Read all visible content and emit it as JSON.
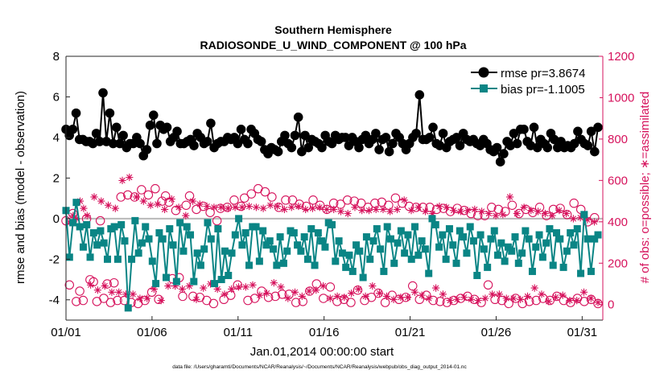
{
  "chart_data": {
    "type": "line",
    "title_line1": "Southern Hemisphere",
    "title_line2": "RADIOSONDE_U_WIND_COMPONENT @ 100 hPa",
    "xlabel": "Jan.01,2014 00:00:00 start",
    "ylabel_left": "rmse and bias (model - observation)",
    "ylabel_right": "# of obs: o=possible; ∗=assimilated",
    "footnote": "data file: /Users/gharamti/Documents/NCAR/Reanalysis/~/Documents/NCAR/Reanalysis/webpub/obs_diag_output_2014-01.nc",
    "xlim": [
      1,
      32.2
    ],
    "ylim_left": [
      -5,
      8
    ],
    "ylim_right": [
      -75,
      1200
    ],
    "left_ticks": [
      "8",
      "6",
      "4",
      "2",
      "0",
      "-2",
      "-4"
    ],
    "right_ticks": [
      "1200",
      "1000",
      "800",
      "600",
      "400",
      "200",
      "0"
    ],
    "x_tick_labels": [
      "01/01",
      "01/06",
      "01/11",
      "01/16",
      "01/21",
      "01/26",
      "01/31"
    ],
    "x_tick_values": [
      1,
      6,
      11,
      16,
      21,
      26,
      31
    ],
    "zero_line": 0,
    "legend": {
      "position": "top-right",
      "rmse_label": "rmse pr=3.8674",
      "bias_label": "bias pr=-1.1005"
    },
    "colors": {
      "rmse": "#000000",
      "bias": "#0a8585",
      "obs": "#d6125c",
      "zero_line": "#b8b8b8",
      "axis": "#262626"
    },
    "series": [
      {
        "name": "rmse",
        "values": [
          4.4,
          4.1,
          4.4,
          5.2,
          3.9,
          3.9,
          3.8,
          3.8,
          3.7,
          4.2,
          3.8,
          6.2,
          3.8,
          5.2,
          3.7,
          4.5,
          3.7,
          4.1,
          3.5,
          3.7,
          3.7,
          4.0,
          3.7,
          3.1,
          3.4,
          4.6,
          5.1,
          3.7,
          4.6,
          4.4,
          4.5,
          3.8,
          4.0,
          4.3,
          3.7,
          3.7,
          3.8,
          3.9,
          3.6,
          4.2,
          4.0,
          3.7,
          3.8,
          4.7,
          3.5,
          3.7,
          3.8,
          3.8,
          4.0,
          3.9,
          4.0,
          3.7,
          4.4,
          3.9,
          3.7,
          4.4,
          4.2,
          3.9,
          3.8,
          3.4,
          3.2,
          3.5,
          3.4,
          3.3,
          3.8,
          4.1,
          3.7,
          3.5,
          4.1,
          5.0,
          3.3,
          4.1,
          3.5,
          3.9,
          3.8,
          3.7,
          3.5,
          4.1,
          3.8,
          3.7,
          4.1,
          3.9,
          4.0,
          4.0,
          3.6,
          4.0,
          3.8,
          3.5,
          3.9,
          4.1,
          3.7,
          3.9,
          4.2,
          3.4,
          3.9,
          4.0,
          3.3,
          3.7,
          4.2,
          4.0,
          3.7,
          3.4,
          3.7,
          4.0,
          4.2,
          6.1,
          3.9,
          3.9,
          4.0,
          4.5,
          3.7,
          3.6,
          4.2,
          3.5,
          3.8,
          3.9,
          4.0,
          3.6,
          4.2,
          3.9,
          3.8,
          3.9,
          3.7,
          3.6,
          3.9,
          3.7,
          3.4,
          3.3,
          3.5,
          2.8,
          3.2,
          3.8,
          3.6,
          4.2,
          3.7,
          4.4,
          4.4,
          3.8,
          3.6,
          4.5,
          3.5,
          3.9,
          3.7,
          3.5,
          4.2,
          3.9,
          3.5,
          3.8,
          3.5,
          3.6,
          3.5,
          3.7,
          4.3,
          3.9,
          3.7,
          3.6,
          4.3,
          3.3,
          4.5
        ]
      },
      {
        "name": "bias",
        "values": [
          0.4,
          -1.9,
          -0.2,
          0.8,
          -0.4,
          -1.4,
          -0.3,
          -1.9,
          -0.7,
          -1.3,
          -0.6,
          -1.2,
          -2.0,
          -0.5,
          -0.4,
          -2.0,
          -0.3,
          -1.1,
          -4.4,
          -2.0,
          -0.1,
          -1.7,
          -1.2,
          -0.4,
          -1.0,
          -2.1,
          -3.2,
          -0.7,
          -1.0,
          -2.9,
          -0.5,
          -1.3,
          -3.1,
          -0.2,
          -1.6,
          -0.4,
          -0.8,
          -3.1,
          -1.7,
          -2.3,
          -1.5,
          -0.2,
          -1.0,
          -3.2,
          -0.5,
          -3.0,
          -1.6,
          -2.8,
          -1.7,
          -0.8,
          0.0,
          -1.3,
          -0.7,
          -2.3,
          -0.4,
          -0.4,
          -2.1,
          -0.6,
          -1.3,
          -1.1,
          -1.5,
          -2.3,
          -0.9,
          -2.2,
          -1.6,
          -0.6,
          -0.7,
          -1.3,
          -1.6,
          -0.9,
          -2.0,
          -0.5,
          -2.3,
          -0.7,
          -1.1,
          -1.4,
          -0.2,
          -0.3,
          -2.1,
          -1.1,
          -1.7,
          -2.4,
          -1.8,
          -2.6,
          -1.3,
          -1.6,
          -2.9,
          -0.9,
          -2.0,
          -1.1,
          -0.5,
          -1.5,
          -2.6,
          -0.4,
          -1.0,
          -2.2,
          -1.2,
          -0.6,
          -1.7,
          -0.8,
          -2.0,
          -0.4,
          -1.8,
          -1.1,
          -1.5,
          -2.7,
          0.0,
          -0.3,
          -1.4,
          -0.8,
          -2.0,
          -0.5,
          -1.3,
          -2.2,
          -0.6,
          -0.9,
          -1.7,
          -0.4,
          -1.1,
          -2.8,
          -0.8,
          -1.5,
          -2.4,
          -1.0,
          -0.6,
          -1.8,
          -1.2,
          -2.1,
          -1.4,
          -1.6,
          -0.9,
          -2.2,
          -1.7,
          -0.6,
          -1.0,
          -2.6,
          -1.4,
          -0.8,
          -1.9,
          -1.2,
          -0.5,
          -2.3,
          -0.7,
          -1.0,
          -2.4,
          -1.6,
          -0.7,
          -1.3,
          -0.5,
          -2.7,
          0.2,
          -1.0,
          -2.6,
          -1.0,
          -0.8
        ]
      },
      {
        "name": "possible",
        "values": [
          405,
          95,
          440,
          15,
          65,
          20,
          415,
          120,
          110,
          15,
          405,
          30,
          100,
          10,
          105,
          20,
          520,
          20,
          530,
          10,
          520,
          5,
          555,
          20,
          530,
          60,
          560,
          25,
          500,
          525,
          495,
          125,
          455,
          130,
          40,
          480,
          525,
          40,
          460,
          35,
          475,
          20,
          445,
          5,
          405,
          465,
          25,
          470,
          45,
          505,
          95,
          475,
          515,
          20,
          535,
          30,
          560,
          65,
          545,
          35,
          520,
          40,
          470,
          50,
          505,
          50,
          505,
          10,
          485,
          15,
          475,
          65,
          505,
          100,
          480,
          30,
          460,
          85,
          490,
          15,
          485,
          25,
          505,
          10,
          500,
          70,
          490,
          20,
          470,
          35,
          490,
          55,
          495,
          10,
          480,
          45,
          515,
          25,
          490,
          35,
          475,
          90,
          470,
          25,
          470,
          45,
          470,
          20,
          460,
          15,
          465,
          10,
          450,
          20,
          465,
          30,
          455,
          40,
          440,
          25,
          430,
          10,
          430,
          95,
          470,
          25,
          460,
          20,
          450,
          5,
          480,
          30,
          440,
          5,
          460,
          15,
          445,
          20,
          470,
          30,
          430,
          20,
          460,
          40,
          465,
          20,
          435,
          10,
          490,
          30,
          460,
          15,
          400,
          25,
          420,
          5
        ]
      },
      {
        "name": "assimilated",
        "values": [
          455,
          400,
          430,
          415,
          500,
          465,
          430,
          95,
          520,
          70,
          500,
          90,
          480,
          60,
          465,
          60,
          600,
          50,
          615,
          50,
          520,
          30,
          500,
          30,
          480,
          75,
          485,
          20,
          460,
          90,
          510,
          90,
          470,
          75,
          430,
          90,
          500,
          25,
          485,
          80,
          475,
          100,
          470,
          75,
          470,
          50,
          465,
          75,
          470,
          85,
          470,
          85,
          475,
          95,
          470,
          45,
          465,
          55,
          480,
          105,
          475,
          85,
          460,
          30,
          470,
          60,
          475,
          40,
          460,
          65,
          465,
          70,
          470,
          90,
          460,
          30,
          460,
          40,
          450,
          35,
          440,
          55,
          470,
          75,
          455,
          40,
          455,
          90,
          460,
          55,
          460,
          40,
          450,
          25,
          460,
          35,
          505,
          35,
          455,
          60,
          470,
          45,
          450,
          30,
          440,
          80,
          475,
          50,
          470,
          20,
          455,
          25,
          450,
          35,
          455,
          25,
          460,
          20,
          450,
          30,
          440,
          50,
          430,
          50,
          435,
          30,
          520,
          30,
          440,
          25,
          470,
          40,
          455,
          80,
          450,
          50,
          440,
          15,
          430,
          35,
          455,
          45,
          440,
          20,
          415,
          20,
          420,
          60,
          410,
          30,
          400,
          10
        ]
      }
    ]
  }
}
